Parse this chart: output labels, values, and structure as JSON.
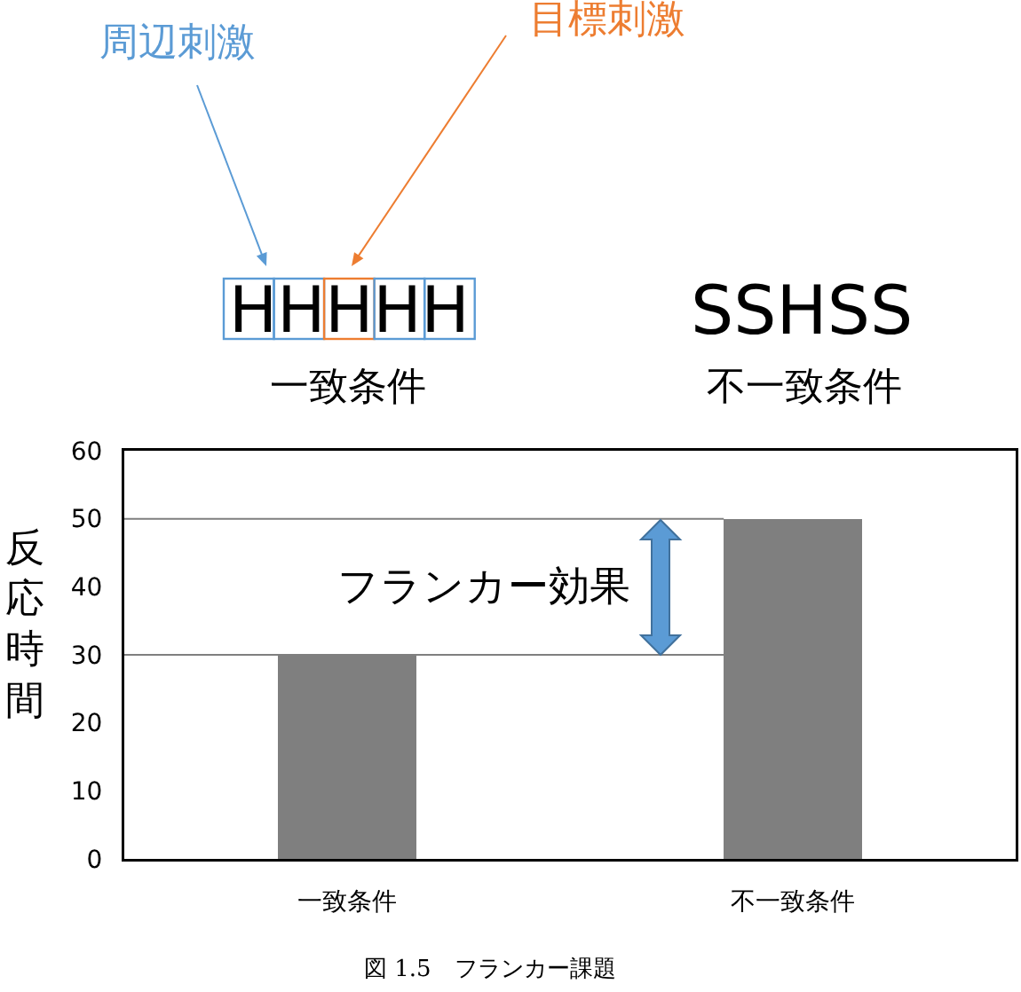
{
  "chart_data": {
    "type": "bar",
    "ylabel": "反応時間",
    "categories": [
      "一致条件",
      "不一致条件"
    ],
    "values": [
      30,
      50
    ],
    "color": "#7f7f7f",
    "ylim": [
      0,
      60
    ],
    "yticks": [
      0,
      10,
      20,
      30,
      40,
      50,
      60
    ],
    "grid": false,
    "ref_lines": [
      {
        "axis": "y",
        "value": 30,
        "color": "#7f7f7f"
      },
      {
        "axis": "y",
        "value": 50,
        "color": "#7f7f7f"
      }
    ],
    "annotations": [
      "周辺刺激",
      "目標刺激",
      "HHHHH",
      "SSHSS",
      "一致条件",
      "不一致条件",
      "フランカー効果",
      "図 1.5　フランカー課題"
    ]
  }
}
